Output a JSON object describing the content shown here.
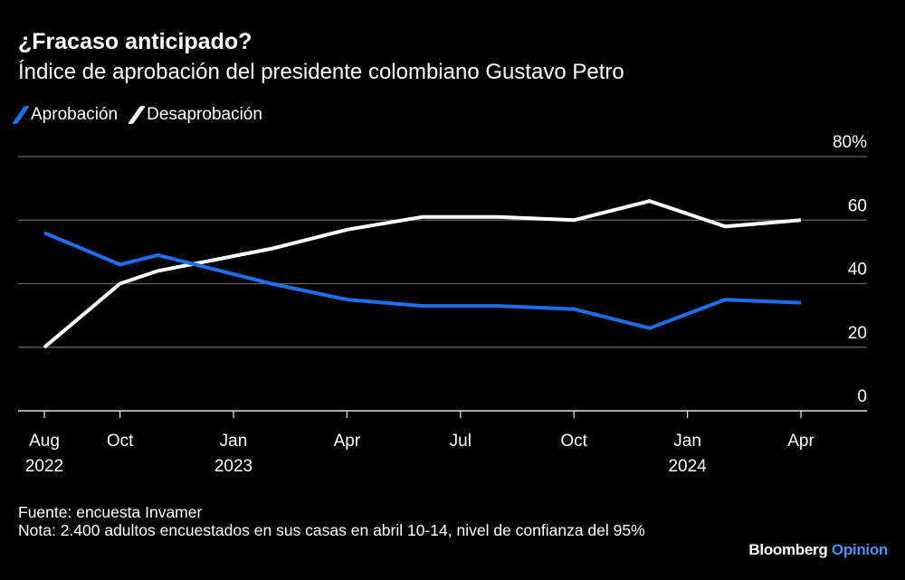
{
  "header": {
    "title": "¿Fracaso anticipado?",
    "subtitle": "Índice de aprobación del presidente colombiano Gustavo Petro"
  },
  "colors": {
    "approval": "#1d6ff0",
    "disapproval": "#ffffff",
    "grid": "#666666",
    "background": "#000000"
  },
  "chart_data": {
    "type": "line",
    "title": "¿Fracaso anticipado?",
    "subtitle": "Índice de aprobación del presidente colombiano Gustavo Petro",
    "x": [
      "2022-08",
      "2022-10",
      "2022-11",
      "2023-02",
      "2023-04",
      "2023-06",
      "2023-08",
      "2023-10",
      "2023-12",
      "2024-02",
      "2024-04"
    ],
    "series": [
      {
        "name": "Aprobación",
        "color": "#1d6ff0",
        "values": [
          56,
          46,
          49,
          40,
          35,
          33,
          33,
          32,
          26,
          35,
          34
        ]
      },
      {
        "name": "Desaprobación",
        "color": "#ffffff",
        "values": [
          20,
          40,
          44,
          51,
          57,
          61,
          61,
          60,
          66,
          58,
          60
        ]
      }
    ],
    "ylim": [
      0,
      80
    ],
    "y_ticks": [
      {
        "value": 0,
        "label": "0"
      },
      {
        "value": 20,
        "label": "20"
      },
      {
        "value": 40,
        "label": "40"
      },
      {
        "value": 60,
        "label": "60"
      },
      {
        "value": 80,
        "label": "80%"
      }
    ],
    "x_ticks": [
      {
        "date": "2022-08",
        "label": "Aug",
        "year": "2022"
      },
      {
        "date": "2022-10",
        "label": "Oct",
        "year": ""
      },
      {
        "date": "2023-01",
        "label": "Jan",
        "year": "2023"
      },
      {
        "date": "2023-04",
        "label": "Apr",
        "year": ""
      },
      {
        "date": "2023-07",
        "label": "Jul",
        "year": ""
      },
      {
        "date": "2023-10",
        "label": "Oct",
        "year": ""
      },
      {
        "date": "2024-01",
        "label": "Jan",
        "year": "2024"
      },
      {
        "date": "2024-04",
        "label": "Apr",
        "year": ""
      }
    ],
    "grid": true,
    "y_axis_position": "right",
    "legend_placement": "top-left"
  },
  "footer": {
    "source": "Fuente: encuesta Invamer",
    "note": "Nota: 2.400 adultos encuestados en sus casas en abril 10-14, nivel de confianza del 95%"
  },
  "logo": {
    "brand": "Bloomberg",
    "section": "Opinion"
  }
}
